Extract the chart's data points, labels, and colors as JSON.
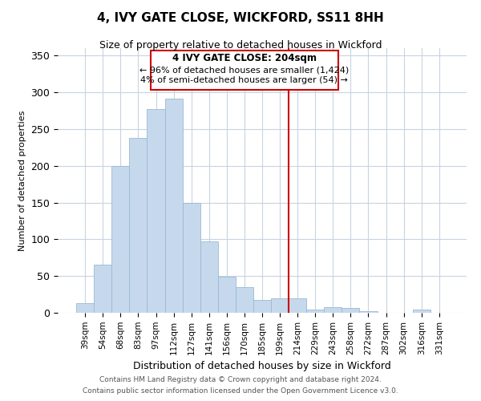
{
  "title": "4, IVY GATE CLOSE, WICKFORD, SS11 8HH",
  "subtitle": "Size of property relative to detached houses in Wickford",
  "xlabel": "Distribution of detached houses by size in Wickford",
  "ylabel": "Number of detached properties",
  "bar_labels": [
    "39sqm",
    "54sqm",
    "68sqm",
    "83sqm",
    "97sqm",
    "112sqm",
    "127sqm",
    "141sqm",
    "156sqm",
    "170sqm",
    "185sqm",
    "199sqm",
    "214sqm",
    "229sqm",
    "243sqm",
    "258sqm",
    "272sqm",
    "287sqm",
    "302sqm",
    "316sqm",
    "331sqm"
  ],
  "bar_values": [
    13,
    65,
    200,
    238,
    277,
    291,
    150,
    97,
    49,
    35,
    18,
    20,
    20,
    4,
    8,
    7,
    2,
    0,
    0,
    4,
    0
  ],
  "bar_color": "#c6d9ec",
  "bar_edge_color": "#9ab8d4",
  "vline_x_idx": 12,
  "vline_color": "#cc0000",
  "annotation_title": "4 IVY GATE CLOSE: 204sqm",
  "annotation_line1": "← 96% of detached houses are smaller (1,424)",
  "annotation_line2": "4% of semi-detached houses are larger (54) →",
  "annotation_box_color": "#ffffff",
  "annotation_box_edge": "#cc0000",
  "ylim": [
    0,
    360
  ],
  "footer1": "Contains HM Land Registry data © Crown copyright and database right 2024.",
  "footer2": "Contains public sector information licensed under the Open Government Licence v3.0.",
  "background_color": "#ffffff",
  "grid_color": "#c8d4e0",
  "title_fontsize": 11,
  "subtitle_fontsize": 9,
  "xlabel_fontsize": 9,
  "ylabel_fontsize": 8,
  "tick_fontsize": 7.5,
  "footer_fontsize": 6.5
}
